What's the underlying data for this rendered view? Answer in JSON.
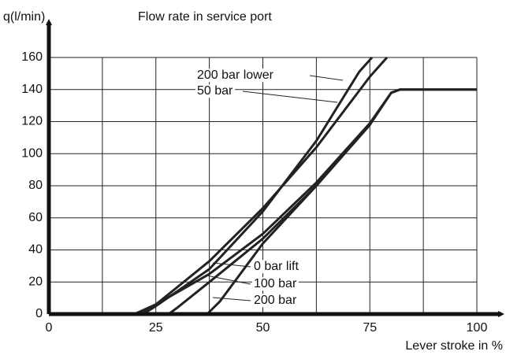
{
  "chart_data": {
    "type": "line",
    "title": "Flow rate in service port",
    "ylabel": "q(l/min)",
    "xlabel": "Lever stroke in %",
    "xlim": [
      0,
      100
    ],
    "xticks": [
      0,
      25,
      50,
      75,
      100
    ],
    "xminor": [
      12.5,
      37.5,
      62.5,
      87.5
    ],
    "ylim": [
      0,
      160
    ],
    "yticks": [
      0,
      20,
      40,
      60,
      80,
      100,
      120,
      140,
      160
    ],
    "grid": true,
    "color": "#222222",
    "series": [
      {
        "name": "200 bar lower",
        "x": [
          20,
          25,
          37.5,
          50,
          62.5,
          75,
          79
        ],
        "values": [
          0,
          6,
          33,
          66,
          104,
          148,
          160
        ]
      },
      {
        "name": "50 bar",
        "x": [
          22,
          25,
          37.5,
          50,
          62.5,
          72.5,
          75.5
        ],
        "values": [
          0,
          5,
          28,
          64,
          108,
          151,
          160
        ]
      },
      {
        "name": "0 bar lift",
        "x": [
          21,
          25,
          37.5,
          50,
          62.5,
          75,
          80,
          82,
          100
        ],
        "values": [
          0,
          6,
          25,
          50,
          82,
          119,
          138,
          140,
          140
        ]
      },
      {
        "name": "100 bar",
        "x": [
          28,
          30,
          37.5,
          50,
          62.5,
          75,
          80,
          82,
          100
        ],
        "values": [
          0,
          4,
          20,
          47,
          80,
          118,
          138,
          140,
          140
        ]
      },
      {
        "name": "200 bar",
        "x": [
          37,
          40,
          50,
          62.5
        ],
        "values": [
          0,
          8,
          44,
          80
        ]
      }
    ]
  }
}
